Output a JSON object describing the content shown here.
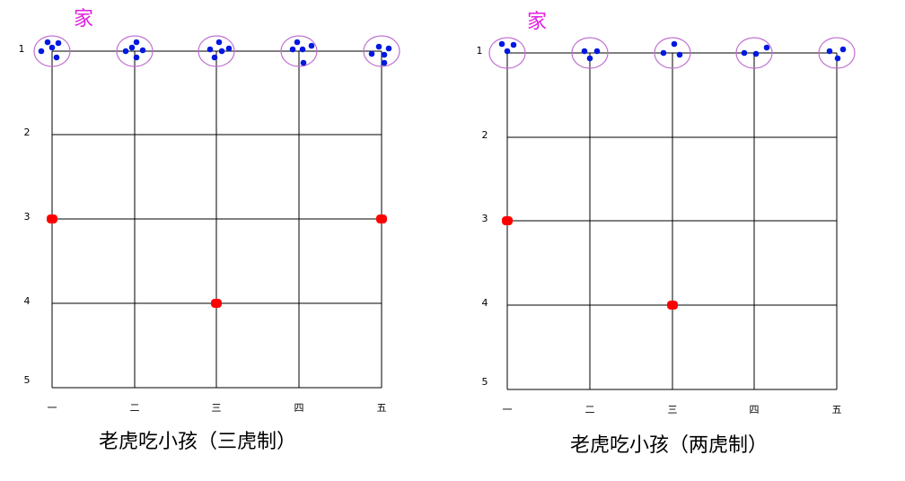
{
  "boards": [
    {
      "home": "家",
      "rows": [
        "1",
        "2",
        "3",
        "4",
        "5"
      ],
      "columns": [
        "一",
        "二",
        "三",
        "四",
        "五"
      ],
      "caption": "老虎吃小孩（三虎制）"
    },
    {
      "home": "家",
      "rows": [
        "1",
        "2",
        "3",
        "4",
        "5"
      ],
      "columns": [
        "一",
        "二",
        "三",
        "四",
        "五"
      ],
      "caption": "老虎吃小孩（两虎制）"
    }
  ]
}
